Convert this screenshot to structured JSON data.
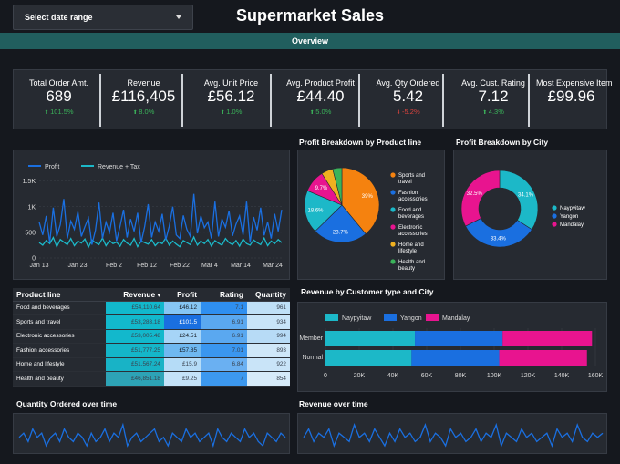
{
  "header": {
    "date_range_label": "Select date range",
    "title": "Supermarket Sales",
    "tab_label": "Overview"
  },
  "kpis": [
    {
      "label": "Total Order Amt.",
      "value": "689",
      "change": "101.5%",
      "direction": "up"
    },
    {
      "label": "Revenue",
      "value": "£116,405",
      "change": "8.0%",
      "direction": "up"
    },
    {
      "label": "Avg. Unit Price",
      "value": "£56.12",
      "change": "1.0%",
      "direction": "up"
    },
    {
      "label": "Avg. Product Profit",
      "value": "£44.40",
      "change": "5.0%",
      "direction": "up"
    },
    {
      "label": "Avg. Qty Ordered",
      "value": "5.42",
      "change": "-5.2%",
      "direction": "down"
    },
    {
      "label": "Avg. Cust. Rating",
      "value": "7.12",
      "change": "4.3%",
      "direction": "up"
    },
    {
      "label": "Most Expensive Item",
      "value": "£99.96",
      "change": "",
      "direction": "none"
    }
  ],
  "colors": {
    "teal": "#1cb8c8",
    "blue": "#1a6fe0",
    "pink": "#e8148f",
    "orange": "#f5820f",
    "purple": "#8c2bd6",
    "green": "#3bb35a",
    "red": "#e0443e"
  },
  "chart_data": [
    {
      "type": "line",
      "title": "",
      "legend": [
        "Profit",
        "Revenue + Tax"
      ],
      "x_tick_labels": [
        "Jan 13",
        "Jan 23",
        "Feb 2",
        "Feb 12",
        "Feb 22",
        "Mar 4",
        "Mar 14",
        "Mar 24"
      ],
      "y_tick_labels": [
        "0",
        "500",
        "1K",
        "1.5K"
      ],
      "ylim": [
        0,
        1600
      ],
      "series": [
        {
          "name": "Profit",
          "color": "#1a6fe0",
          "values": [
            700,
            450,
            820,
            300,
            980,
            420,
            650,
            1150,
            380,
            720,
            560,
            900,
            420,
            610,
            780,
            260,
            540,
            1080,
            380,
            700,
            500,
            880,
            330,
            620,
            940,
            400,
            760,
            520,
            880,
            300,
            610,
            1050,
            400,
            700,
            520,
            860,
            350,
            620,
            1000,
            450,
            380,
            830,
            560,
            420,
            1250,
            480,
            820,
            590,
            700,
            380,
            1100,
            420,
            760,
            600,
            920,
            430,
            660,
            820,
            450,
            1100,
            300,
            800,
            540,
            980,
            440,
            700,
            380,
            860,
            520,
            940
          ]
        },
        {
          "name": "Revenue + Tax",
          "color": "#1cb8c8",
          "values": [
            300,
            250,
            340,
            280,
            400,
            220,
            360,
            310,
            260,
            380,
            240,
            330,
            290,
            370,
            210,
            350,
            300,
            260,
            390,
            240,
            340,
            280,
            310,
            230,
            360,
            290,
            250,
            380,
            220,
            330,
            300,
            270,
            360,
            240,
            310,
            280,
            390,
            250,
            330,
            270,
            220,
            340,
            300,
            260,
            410,
            250,
            330,
            280,
            360,
            230,
            340,
            290,
            250,
            380,
            300,
            260,
            340,
            230,
            370,
            280,
            250,
            350,
            300,
            260,
            390,
            240,
            330,
            280,
            360,
            300
          ]
        }
      ]
    },
    {
      "type": "pie",
      "title": "Profit Breakdown by Product line",
      "categories": [
        "Sports and travel",
        "Fashion accessories",
        "Food and beverages",
        "Electronic accessories",
        "Home and lifestyle",
        "Health and beauty"
      ],
      "values": [
        39,
        23.7,
        18.6,
        9.7,
        5,
        4
      ],
      "slice_labels": [
        "39%",
        "23.7%",
        "18.6%",
        "9.7%",
        "",
        ""
      ],
      "colors": [
        "#f5820f",
        "#1a6fe0",
        "#1cb8c8",
        "#e8148f",
        "#f0b020",
        "#3bb35a"
      ]
    },
    {
      "type": "pie",
      "title": "Profit Breakdown by City",
      "categories": [
        "Naypyitaw",
        "Yangon",
        "Mandalay"
      ],
      "values": [
        34.1,
        33.4,
        32.5
      ],
      "slice_labels": [
        "34.1%",
        "33.4%",
        "32.5%"
      ],
      "colors": [
        "#1cb8c8",
        "#1a6fe0",
        "#e8148f"
      ]
    },
    {
      "type": "bar",
      "title": "Revenue by Customer type and City",
      "orientation": "horizontal",
      "stacked": true,
      "categories": [
        "Member",
        "Normal"
      ],
      "series": [
        {
          "name": "Naypyitaw",
          "color": "#1cb8c8",
          "values": [
            53000,
            51000
          ]
        },
        {
          "name": "Yangon",
          "color": "#1a6fe0",
          "values": [
            52000,
            52000
          ]
        },
        {
          "name": "Mandalay",
          "color": "#e8148f",
          "values": [
            53000,
            52000
          ]
        }
      ],
      "x_tick_labels": [
        "0",
        "20K",
        "40K",
        "60K",
        "80K",
        "100K",
        "120K",
        "140K",
        "160K"
      ],
      "xlim": [
        0,
        160000
      ]
    },
    {
      "type": "line",
      "title": "Quantity Ordered over time",
      "series": [
        {
          "name": "Quantity",
          "color": "#1a6fe0",
          "values": [
            5,
            6,
            4,
            7,
            5,
            6,
            3,
            5,
            6,
            4,
            7,
            5,
            4,
            6,
            5,
            3,
            6,
            4,
            5,
            7,
            4,
            6,
            5,
            8,
            3,
            5,
            6,
            4,
            5,
            6,
            7,
            4,
            5,
            3,
            6,
            5,
            4,
            7,
            5,
            6,
            4,
            5,
            6,
            3,
            7,
            5,
            4,
            6,
            5,
            4,
            7,
            5,
            6,
            4,
            3,
            6,
            5,
            4,
            6,
            5
          ]
        }
      ]
    },
    {
      "type": "line",
      "title": "Revenue over time",
      "series": [
        {
          "name": "Revenue",
          "color": "#1a6fe0",
          "values": [
            5,
            7,
            4,
            6,
            5,
            7,
            3,
            6,
            5,
            4,
            8,
            5,
            6,
            4,
            7,
            5,
            3,
            6,
            4,
            7,
            5,
            6,
            4,
            5,
            8,
            4,
            6,
            5,
            3,
            7,
            5,
            6,
            4,
            5,
            7,
            4,
            6,
            5,
            8,
            3,
            6,
            5,
            4,
            7,
            5,
            6,
            4,
            5,
            6,
            3,
            7,
            5,
            6,
            4,
            8,
            5,
            4,
            6,
            5,
            6
          ]
        }
      ]
    }
  ],
  "product_table": {
    "headers": [
      "Product line",
      "Revenue",
      "Profit",
      "Rating",
      "Quantity"
    ],
    "sort_indicator": "▾",
    "rows": [
      {
        "name": "Food and beverages",
        "revenue": "£54,110.64",
        "profit": "£46.12",
        "rating": "7.1",
        "quantity": "961",
        "rev_shade": "#12b8cc",
        "profit_shade": "#86c6f4",
        "rating_shade": "#2f8ff0",
        "qty_shade": "#bfe0f7"
      },
      {
        "name": "Sports and travel",
        "revenue": "£53,283.18",
        "profit": "£101.5",
        "rating": "6.91",
        "quantity": "934",
        "rev_shade": "#12b8cc",
        "profit_shade": "#1a6fe0",
        "rating_shade": "#5aa8f0",
        "qty_shade": "#c8e4f8"
      },
      {
        "name": "Electronic accessories",
        "revenue": "£53,005.48",
        "profit": "£24.51",
        "rating": "6.91",
        "quantity": "994",
        "rev_shade": "#12b8cc",
        "profit_shade": "#a6d4f7",
        "rating_shade": "#5aa8f0",
        "qty_shade": "#b7dbf6"
      },
      {
        "name": "Fashion accessories",
        "revenue": "£51,777.25",
        "profit": "£57.85",
        "rating": "7.01",
        "quantity": "893",
        "rev_shade": "#14b6c9",
        "profit_shade": "#6fb8f0",
        "rating_shade": "#3a96ef",
        "qty_shade": "#cfe7f8"
      },
      {
        "name": "Home and lifestyle",
        "revenue": "£51,567.24",
        "profit": "£15.9",
        "rating": "6.84",
        "quantity": "922",
        "rev_shade": "#18b3c6",
        "profit_shade": "#b5dcf7",
        "rating_shade": "#6ab0f2",
        "qty_shade": "#c9e4f8"
      },
      {
        "name": "Health and beauty",
        "revenue": "£46,851.18",
        "profit": "£9.25",
        "rating": "7",
        "quantity": "854",
        "rev_shade": "#2da3b6",
        "profit_shade": "#c4e2f8",
        "rating_shade": "#3c98ef",
        "qty_shade": "#d6eaf9"
      }
    ]
  },
  "section_titles": {
    "profit_by_product": "Profit Breakdown by Product line",
    "profit_by_city": "Profit Breakdown by City",
    "revenue_by_customer": "Revenue by Customer type and City",
    "qty_over_time": "Quantity Ordered over time",
    "revenue_over_time": "Revenue over time"
  }
}
